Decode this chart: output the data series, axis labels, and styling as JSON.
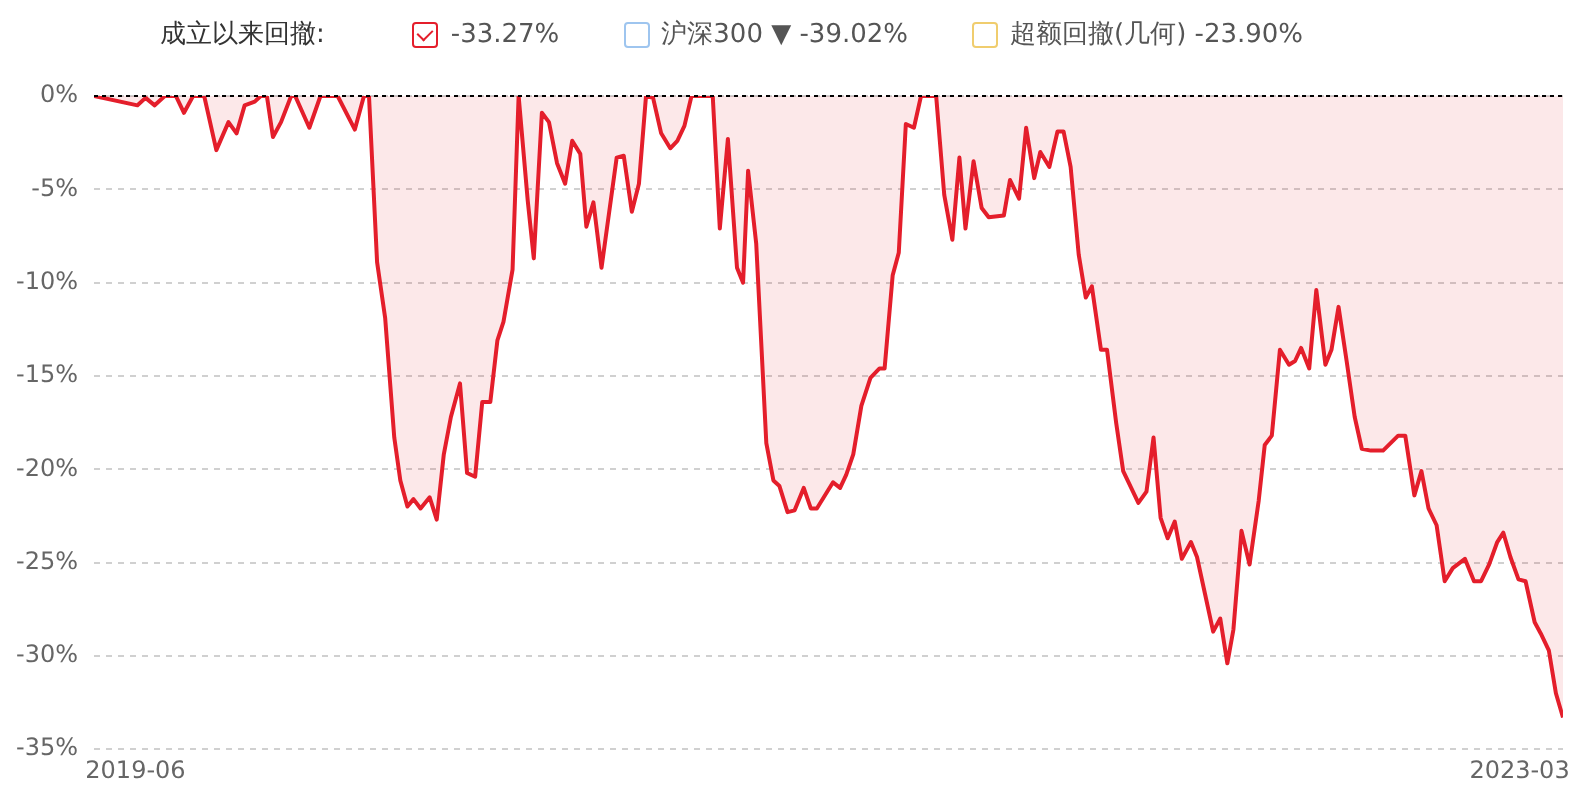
{
  "chart_data": {
    "type": "area",
    "legend_title": "成立以来回撤:",
    "legend": "top left",
    "grid": "y",
    "xlim": [
      "2019-04-21",
      "2023-04-13"
    ],
    "xticks": [
      "2019-06",
      "2023-03"
    ],
    "ylim": [
      -35,
      0
    ],
    "yticks": [
      {
        "value": 0,
        "label": "0%"
      },
      {
        "value": -5,
        "label": "-5%"
      },
      {
        "value": -10,
        "label": "-10%"
      },
      {
        "value": -15,
        "label": "-15%"
      },
      {
        "value": -20,
        "label": "-20%"
      },
      {
        "value": -25,
        "label": "-25%"
      },
      {
        "value": -30,
        "label": "-30%"
      },
      {
        "value": -35,
        "label": "-35%"
      }
    ],
    "ref_lines": [
      {
        "axis": "y",
        "value": 0,
        "color": "#000000",
        "line_style": "dotted"
      }
    ],
    "x": [
      "2019-04-21",
      "2019-06-03",
      "2019-06-11",
      "2019-06-20",
      "2019-06-30",
      "2019-07-11",
      "2019-07-19",
      "2019-07-28",
      "2019-08-08",
      "2019-08-20",
      "2019-09-01",
      "2019-09-09",
      "2019-09-17",
      "2019-09-27",
      "2019-10-03",
      "2019-10-09",
      "2019-10-15",
      "2019-10-23",
      "2019-11-02",
      "2019-11-06",
      "2019-11-20",
      "2019-12-01",
      "2019-12-18",
      "2020-01-04",
      "2020-01-13",
      "2020-01-18",
      "2020-01-26",
      "2020-02-03",
      "2020-02-12",
      "2020-02-18",
      "2020-02-25",
      "2020-03-02",
      "2020-03-09",
      "2020-03-18",
      "2020-03-25",
      "2020-04-01",
      "2020-04-08",
      "2020-04-17",
      "2020-04-24",
      "2020-05-02",
      "2020-05-09",
      "2020-05-17",
      "2020-05-24",
      "2020-05-30",
      "2020-06-08",
      "2020-06-14",
      "2020-06-23",
      "2020-06-29",
      "2020-07-07",
      "2020-07-14",
      "2020-07-22",
      "2020-07-30",
      "2020-08-06",
      "2020-08-14",
      "2020-08-20",
      "2020-08-27",
      "2020-09-04",
      "2020-09-19",
      "2020-09-26",
      "2020-10-04",
      "2020-10-11",
      "2020-10-18",
      "2020-10-25",
      "2020-11-02",
      "2020-11-11",
      "2020-11-18",
      "2020-11-25",
      "2020-12-02",
      "2020-12-23",
      "2020-12-30",
      "2021-01-07",
      "2021-01-16",
      "2021-01-22",
      "2021-01-27",
      "2021-02-04",
      "2021-02-14",
      "2021-02-21",
      "2021-02-27",
      "2021-03-07",
      "2021-03-14",
      "2021-03-23",
      "2021-03-30",
      "2021-04-05",
      "2021-04-21",
      "2021-04-28",
      "2021-05-04",
      "2021-05-11",
      "2021-05-19",
      "2021-05-28",
      "2021-06-06",
      "2021-06-11",
      "2021-06-19",
      "2021-06-25",
      "2021-07-02",
      "2021-07-10",
      "2021-07-17",
      "2021-08-01",
      "2021-08-09",
      "2021-08-17",
      "2021-08-24",
      "2021-08-30",
      "2021-09-07",
      "2021-09-15",
      "2021-09-22",
      "2021-10-07",
      "2021-10-13",
      "2021-10-22",
      "2021-10-29",
      "2021-11-06",
      "2021-11-12",
      "2021-11-21",
      "2021-11-29",
      "2021-12-05",
      "2021-12-12",
      "2021-12-20",
      "2021-12-27",
      "2022-01-02",
      "2022-01-11",
      "2022-01-17",
      "2022-01-26",
      "2022-02-02",
      "2022-02-17",
      "2022-02-25",
      "2022-03-04",
      "2022-03-11",
      "2022-03-18",
      "2022-03-25",
      "2022-04-01",
      "2022-04-10",
      "2022-04-16",
      "2022-04-24",
      "2022-05-02",
      "2022-05-09",
      "2022-05-16",
      "2022-05-22",
      "2022-05-30",
      "2022-06-07",
      "2022-06-16",
      "2022-06-22",
      "2022-06-29",
      "2022-07-07",
      "2022-07-16",
      "2022-07-22",
      "2022-07-28",
      "2022-08-05",
      "2022-08-12",
      "2022-08-21",
      "2022-08-27",
      "2022-09-03",
      "2022-09-11",
      "2022-09-19",
      "2022-09-26",
      "2022-10-05",
      "2022-10-17",
      "2022-11-01",
      "2022-11-08",
      "2022-11-17",
      "2022-11-24",
      "2022-12-01",
      "2022-12-09",
      "2022-12-17",
      "2022-12-25",
      "2023-01-06",
      "2023-01-15",
      "2023-01-22",
      "2023-01-30",
      "2023-02-07",
      "2023-02-13",
      "2023-02-20",
      "2023-02-28",
      "2023-03-07",
      "2023-03-16",
      "2023-03-22",
      "2023-03-30",
      "2023-04-06",
      "2023-04-13"
    ],
    "series": [
      {
        "name": "-33.27%",
        "color": "#e41e2b",
        "values": [
          0,
          -0.5,
          -0.1,
          -0.5,
          0,
          0,
          -0.9,
          0,
          0,
          -2.9,
          -1.4,
          -2.0,
          -0.5,
          -0.3,
          0,
          0,
          -2.2,
          -1.4,
          0,
          0,
          -1.7,
          0,
          0,
          -1.8,
          0,
          0,
          -8.9,
          -11.9,
          -18.3,
          -20.6,
          -22.0,
          -21.6,
          -22.1,
          -21.5,
          -22.7,
          -19.2,
          -17.2,
          -15.4,
          -20.2,
          -20.4,
          -16.4,
          -16.4,
          -13.1,
          -12.1,
          -9.3,
          0,
          -5.6,
          -8.7,
          -0.9,
          -1.4,
          -3.6,
          -4.7,
          -2.4,
          -3.1,
          -7.0,
          -5.7,
          -9.2,
          -3.3,
          -3.2,
          -6.2,
          -4.7,
          0,
          -0.1,
          -2.0,
          -2.8,
          -2.4,
          -1.6,
          0,
          0,
          -7.1,
          -2.3,
          -9.2,
          -10.0,
          -4.0,
          -7.9,
          -18.6,
          -20.6,
          -20.9,
          -22.3,
          -22.2,
          -21.0,
          -22.1,
          -22.1,
          -20.7,
          -21.0,
          -20.3,
          -19.2,
          -16.6,
          -15.1,
          -14.6,
          -14.6,
          -9.6,
          -8.4,
          -1.5,
          -1.7,
          0,
          0,
          -5.3,
          -7.7,
          -3.3,
          -7.1,
          -3.5,
          -6.0,
          -6.5,
          -6.4,
          -4.5,
          -5.5,
          -1.7,
          -4.4,
          -3.0,
          -3.8,
          -1.9,
          -1.9,
          -3.8,
          -8.5,
          -10.8,
          -10.2,
          -13.6,
          -13.6,
          -17.5,
          -20.1,
          -21.8,
          -21.2,
          -18.3,
          -22.6,
          -23.7,
          -22.8,
          -24.8,
          -23.9,
          -24.7,
          -26.7,
          -28.7,
          -28.0,
          -30.4,
          -28.6,
          -23.3,
          -25.1,
          -21.7,
          -18.7,
          -18.2,
          -13.6,
          -14.4,
          -14.2,
          -13.5,
          -14.6,
          -10.4,
          -14.4,
          -13.6,
          -11.3,
          -14.2,
          -17.2,
          -18.9,
          -19.0,
          -19.0,
          -18.2,
          -18.2,
          -21.4,
          -20.1,
          -22.1,
          -23.0,
          -26.0,
          -25.3,
          -24.8,
          -26.0,
          -26.0,
          -25.1,
          -23.9,
          -23.4,
          -24.7,
          -25.9,
          -26.0,
          -28.2,
          -28.8,
          -29.7,
          -32.0,
          -33.3
        ]
      }
    ],
    "annotations": [
      "沪深300 ▼ -39.02%",
      "超额回撤(几何) -23.90%"
    ]
  }
}
